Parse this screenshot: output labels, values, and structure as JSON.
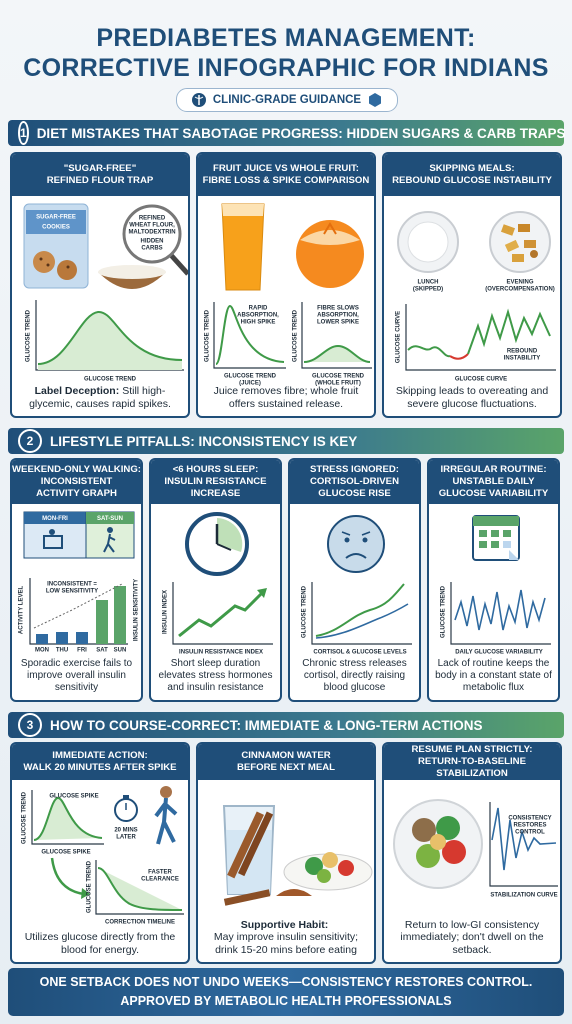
{
  "header": {
    "title": [
      "PREDIABETES MANAGEMENT:",
      "CORRECTIVE INFOGRAPHIC FOR INDIANS"
    ],
    "badge": "CLINIC-GRADE GUIDANCE"
  },
  "sections": [
    {
      "number": "1",
      "title": "DIET MISTAKES THAT SABOTAGE PROGRESS: HIDDEN SUGARS & CARB TRAPS",
      "cards": [
        {
          "title": [
            "\"SUGAR-FREE\"",
            "REFINED FLOUR TRAP"
          ],
          "labels": [
            "SUGAR-FREE",
            "COOKIES",
            "REFINED",
            "WHEAT FLOUR,",
            "MALTODEXTRIN",
            "HIDDEN",
            "CARBS",
            "GLUCOSE TREND",
            "GLUCOSE TREND"
          ],
          "caption_lead": "Label Deception:",
          "caption": "Still high-glycemic, causes rapid spikes."
        },
        {
          "title": [
            "FRUIT JUICE VS WHOLE FRUIT:",
            "FIBRE LOSS & SPIKE COMPARISON"
          ],
          "labels": [
            "RAPID",
            "ABSORPTION,",
            "HIGH SPIKE",
            "FIBRE SLOWS",
            "ABSORPTION,",
            "LOWER SPIKE",
            "GLUCOSE TREND",
            "GLUCOSE TREND",
            "GLUCOSE TREND",
            "(JUICE)",
            "GLUCOSE TREND",
            "(WHOLE FRUIT)"
          ],
          "caption": "Juice removes fibre; whole fruit offers sustained release."
        },
        {
          "title": [
            "SKIPPING MEALS:",
            "REBOUND GLUCOSE INSTABILITY"
          ],
          "labels": [
            "LUNCH",
            "(SKIPPED)",
            "EVENING",
            "(OVERCOMPENSATION)",
            "GLUCOSE CURVE",
            "REBOUND",
            "INSTABILITY",
            "GLUCOSE CURVE"
          ],
          "caption": "Skipping leads to overeating and severe glucose fluctuations."
        }
      ]
    },
    {
      "number": "2",
      "title": "LIFESTYLE PITFALLS: INCONSISTENCY IS KEY",
      "cards": [
        {
          "title": [
            "WEEKEND-ONLY WALKING:",
            "INCONSISTENT",
            "ACTIVITY GRAPH"
          ],
          "labels": [
            "MON-FRI",
            "SAT-SUN",
            "ACTIVITY LEVEL",
            "INCONSISTENT =",
            "LOW SENSITIVITY",
            "INSULIN SENSITIVITY",
            "MON",
            "THU",
            "FRI",
            "SAT",
            "SUN"
          ],
          "caption": "Sporadic exercise fails to improve overall insulin sensitivity"
        },
        {
          "title": [
            "<6 HOURS SLEEP:",
            "INSULIN RESISTANCE",
            "INCREASE"
          ],
          "labels": [
            "INSULIN INDEX",
            "INSULIN RESISTANCE INDEX"
          ],
          "caption": "Short sleep duration elevates stress hormones and insulin resistance"
        },
        {
          "title": [
            "STRESS IGNORED:",
            "CORTISOL-DRIVEN",
            "GLUCOSE RISE"
          ],
          "labels": [
            "GLUCOSE TREND",
            "CORTISOL & GLUCOSE LEVELS"
          ],
          "caption": "Chronic stress releases cortisol, directly raising blood glucose"
        },
        {
          "title": [
            "IRREGULAR ROUTINE:",
            "UNSTABLE DAILY",
            "GLUCOSE VARIABILITY"
          ],
          "labels": [
            "GLUCOSE TREND",
            "DAILY GLUCOSE VARIABILITY"
          ],
          "caption": "Lack of routine keeps the body in a constant state of metabolic flux"
        }
      ]
    },
    {
      "number": "3",
      "title": "HOW TO COURSE-CORRECT: IMMEDIATE & LONG-TERM ACTIONS",
      "cards": [
        {
          "title": [
            "IMMEDIATE ACTION:",
            "WALK 20 MINUTES AFTER SPIKE"
          ],
          "labels": [
            "GLUCOSE TREND",
            "GLUCOSE SPIKE",
            "GLUCOSE SPIKE",
            "20 MINS",
            "LATER",
            "GLUCOSE TREND",
            "FASTER",
            "CLEARANCE",
            "CORRECTION TIMELINE"
          ],
          "caption": "Utilizes glucose directly from the blood for energy."
        },
        {
          "title": [
            "CINNAMON WATER",
            "BEFORE NEXT MEAL"
          ],
          "caption_lead": "Supportive Habit:",
          "caption": "May improve insulin sensitivity; drink 15-20 mins before eating"
        },
        {
          "title": [
            "RESUME PLAN STRICTLY:",
            "RETURN-TO-BASELINE STABILIZATION"
          ],
          "labels": [
            "CONSISTENCY",
            "RESTORES",
            "CONTROL",
            "STABILIZATION CURVE"
          ],
          "caption": "Return to low-GI consistency immediately; don't dwell on the setback."
        }
      ]
    }
  ],
  "footer": [
    "ONE SETBACK DOES NOT UNDO WEEKS—CONSISTENCY RESTORES CONTROL.",
    "APPROVED BY METABOLIC HEALTH PROFESSIONALS"
  ]
}
